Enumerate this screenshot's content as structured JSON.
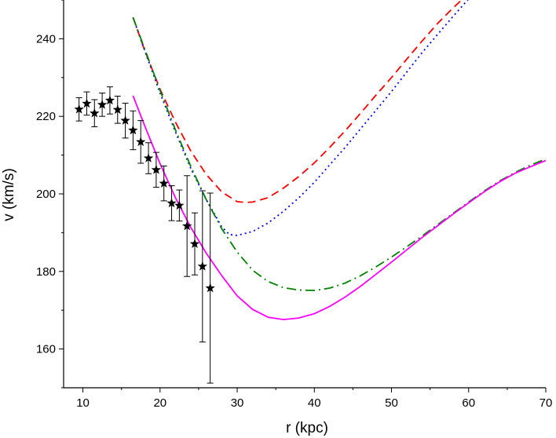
{
  "chart_data": {
    "type": "scatter",
    "title": "",
    "xlabel": "r (kpc)",
    "ylabel": "v (km/s)",
    "xlim": [
      7.5,
      70
    ],
    "ylim": [
      150,
      250
    ],
    "xticks": [
      10,
      20,
      30,
      40,
      50,
      60,
      70
    ],
    "yticks": [
      160,
      180,
      200,
      220,
      240
    ],
    "grid": false,
    "legend": "none",
    "observations": {
      "marker": "star",
      "color": "#000000",
      "points": [
        {
          "x": 9.5,
          "y": 221.8,
          "err": 3.0
        },
        {
          "x": 10.5,
          "y": 223.3,
          "err": 3.0
        },
        {
          "x": 11.5,
          "y": 220.8,
          "err": 3.5
        },
        {
          "x": 12.5,
          "y": 223.0,
          "err": 3.0
        },
        {
          "x": 13.5,
          "y": 224.1,
          "err": 3.5
        },
        {
          "x": 14.5,
          "y": 221.7,
          "err": 3.5
        },
        {
          "x": 15.5,
          "y": 218.9,
          "err": 4.5
        },
        {
          "x": 16.5,
          "y": 216.4,
          "err": 5.0
        },
        {
          "x": 17.5,
          "y": 213.4,
          "err": 5.5
        },
        {
          "x": 18.5,
          "y": 209.2,
          "err": 4.0
        },
        {
          "x": 19.5,
          "y": 206.2,
          "err": 4.5
        },
        {
          "x": 20.5,
          "y": 202.7,
          "err": 4.5
        },
        {
          "x": 21.5,
          "y": 197.6,
          "err": 4.5
        },
        {
          "x": 22.5,
          "y": 197.0,
          "err": 4.0
        },
        {
          "x": 23.5,
          "y": 191.7,
          "err": 13.0
        },
        {
          "x": 24.5,
          "y": 187.1,
          "err": 8.0
        },
        {
          "x": 25.5,
          "y": 181.3,
          "err": 19.5
        },
        {
          "x": 26.5,
          "y": 175.7,
          "err": 24.5
        }
      ]
    },
    "series": [
      {
        "style": "dashed",
        "color": "#ff0000",
        "x": [
          16.5,
          18,
          20,
          22,
          24,
          26,
          28,
          30,
          31,
          32,
          34,
          36,
          38,
          40,
          42,
          44,
          46,
          48,
          50,
          52,
          54,
          56,
          58,
          60,
          62
        ],
        "y": [
          245.5,
          237,
          227,
          218.5,
          211,
          205,
          200.5,
          198,
          197.8,
          197.9,
          199,
          201.5,
          204.5,
          208,
          212,
          216.3,
          220.8,
          225.5,
          230,
          234.8,
          239.5,
          244,
          248,
          251.7,
          255.2
        ]
      },
      {
        "style": "dotted",
        "color": "#0000ff",
        "x": [
          16.5,
          18,
          20,
          22,
          24,
          26,
          28,
          29,
          30,
          32,
          34,
          36,
          38,
          40,
          42,
          44,
          46,
          48,
          50,
          52,
          54,
          56,
          58,
          60,
          62
        ],
        "y": [
          245.5,
          237,
          226,
          216,
          206.5,
          198.5,
          191.5,
          189.5,
          189.3,
          190.3,
          192.5,
          195.5,
          199,
          203,
          207.5,
          212,
          216.8,
          221.6,
          226.4,
          231.5,
          236.5,
          241.2,
          245.8,
          250.3,
          254.7
        ]
      },
      {
        "style": "dashdot",
        "color": "#008000",
        "x": [
          16.5,
          18,
          20,
          22,
          24,
          26,
          28,
          30,
          32,
          34,
          36,
          38,
          40,
          42,
          44,
          46,
          48,
          50,
          52,
          54,
          56,
          58,
          60,
          62,
          64,
          66,
          68,
          70
        ],
        "y": [
          245.5,
          237.4,
          226.7,
          216.5,
          207,
          198.5,
          191,
          185,
          180.3,
          177.4,
          175.8,
          175.2,
          175.1,
          175.7,
          177,
          178.9,
          181.2,
          183.7,
          186.4,
          189.2,
          192.1,
          195,
          197.9,
          200.7,
          203.3,
          205.5,
          207.4,
          209
        ]
      },
      {
        "style": "solid",
        "color": "#ff00ff",
        "x": [
          16.5,
          18,
          20,
          22,
          24,
          26,
          28,
          30,
          32,
          34,
          36,
          38,
          40,
          42,
          44,
          46,
          48,
          50,
          52,
          54,
          56,
          58,
          60,
          62,
          64,
          66,
          68,
          70
        ],
        "y": [
          225.3,
          217.6,
          207.8,
          199,
          191.3,
          184.7,
          178.9,
          173.7,
          170.2,
          168.2,
          167.6,
          168,
          169.1,
          171,
          173.4,
          176.2,
          179.3,
          182.4,
          185.6,
          188.8,
          191.8,
          194.8,
          197.7,
          200.5,
          203.1,
          205.3,
          207,
          208.6
        ]
      }
    ]
  }
}
